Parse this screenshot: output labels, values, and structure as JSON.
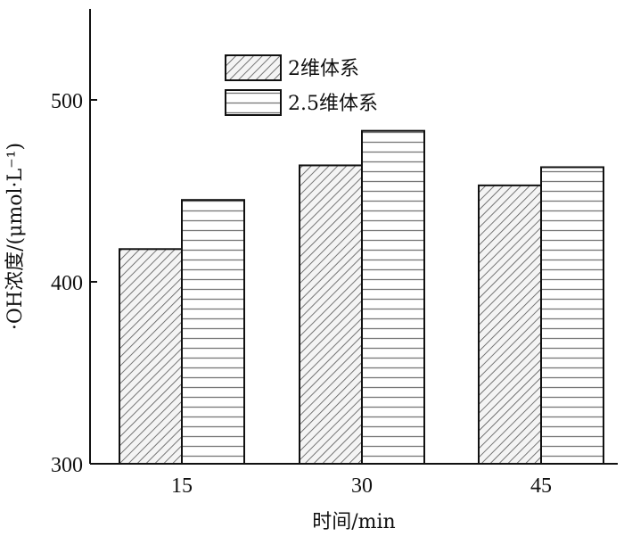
{
  "chart_data": {
    "type": "bar",
    "categories": [
      "15",
      "30",
      "45"
    ],
    "series": [
      {
        "name": "2维体系",
        "values": [
          418,
          464,
          453
        ],
        "pattern": "diagonal"
      },
      {
        "name": "2.5维体系",
        "values": [
          445,
          483,
          463
        ],
        "pattern": "horizontal"
      }
    ],
    "title": "",
    "xlabel": "时间/min",
    "ylabel": "·OH浓度/(μmol·L⁻¹)",
    "ylim": [
      300,
      550
    ],
    "yticks": [
      300,
      400,
      500
    ],
    "grid": false,
    "legend_position": "top-center"
  }
}
